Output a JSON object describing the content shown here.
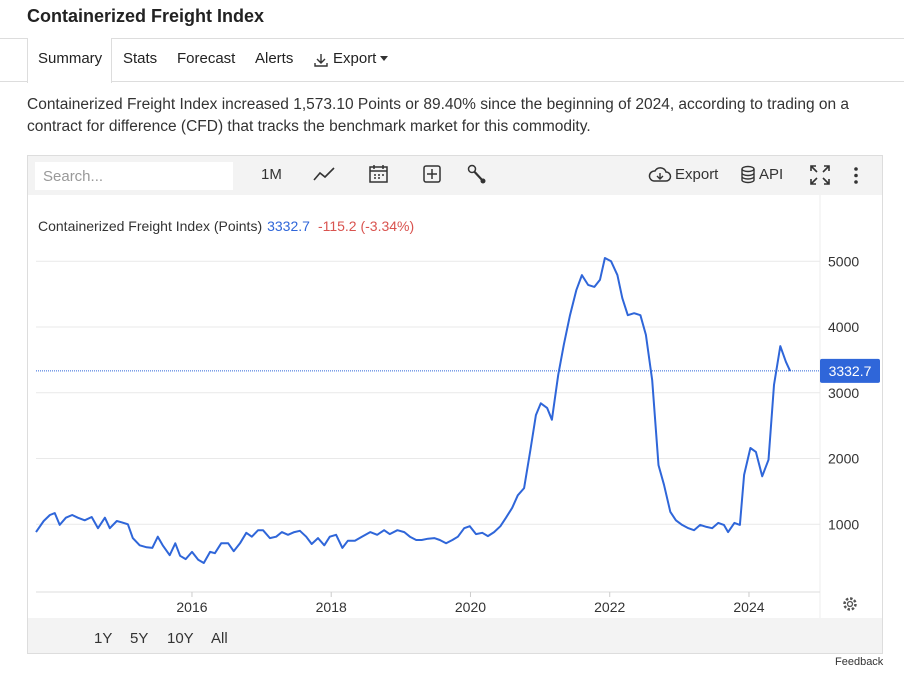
{
  "header": {
    "title": "Containerized Freight Index"
  },
  "tabs": [
    "Summary",
    "Stats",
    "Forecast",
    "Alerts",
    "Export"
  ],
  "description": "Containerized Freight Index increased 1,573.10 Points or 89.40% since the beginning of 2024, according to trading on a contract for difference (CFD) that tracks the benchmark market for this commodity.",
  "toolbar": {
    "search_placeholder": "Search...",
    "interval": "1M",
    "export": "Export",
    "api": "API"
  },
  "ranges": [
    "1Y",
    "5Y",
    "10Y",
    "All"
  ],
  "feedback": "Feedback",
  "chart_data": {
    "type": "line",
    "series": [
      {
        "name": "Containerized Freight Index (Points)",
        "color": "#2f66d9",
        "values": [
          880,
          1050,
          1140,
          1170,
          990,
          1100,
          1140,
          1100,
          1060,
          1110,
          940,
          1100,
          940,
          1050,
          1030,
          1000,
          790,
          680,
          650,
          640,
          810,
          680,
          530,
          710,
          520,
          470,
          580,
          460,
          410,
          580,
          560,
          710,
          710,
          590,
          710,
          870,
          810,
          910,
          910,
          790,
          810,
          880,
          840,
          880,
          900,
          810,
          700,
          790,
          680,
          810,
          840,
          640,
          750,
          750,
          810,
          880,
          840,
          910,
          850,
          910,
          880,
          810,
          760,
          760,
          780,
          790,
          760,
          710,
          760,
          810,
          940,
          970,
          850,
          870,
          820,
          880,
          970,
          1100,
          1250,
          1440,
          1550,
          2130,
          2660,
          2840,
          2770,
          2590,
          3270,
          3730,
          4180,
          4560,
          4790,
          4640,
          4610,
          4720,
          5050,
          5000,
          4790,
          4440,
          4180,
          4210,
          4180,
          3880,
          3190,
          1900,
          1600,
          1190,
          1060,
          990,
          940,
          910,
          990,
          960,
          940,
          1020,
          990,
          880,
          1020,
          990,
          1750,
          2160,
          2100,
          1730,
          1980,
          3120,
          3710,
          3470,
          3332.7
        ]
      }
    ],
    "x": [
      2013.76,
      2013.87,
      2013.96,
      2014.03,
      2014.1,
      2014.19,
      2014.28,
      2014.36,
      2014.46,
      2014.56,
      2014.65,
      2014.75,
      2014.82,
      2014.92,
      2014.99,
      2015.08,
      2015.15,
      2015.25,
      2015.35,
      2015.43,
      2015.51,
      2015.58,
      2015.68,
      2015.76,
      2015.83,
      2015.91,
      2016.0,
      2016.09,
      2016.17,
      2016.26,
      2016.33,
      2016.42,
      2016.52,
      2016.6,
      2016.69,
      2016.78,
      2016.86,
      2016.95,
      2017.02,
      2017.12,
      2017.21,
      2017.29,
      2017.38,
      2017.47,
      2017.55,
      2017.64,
      2017.72,
      2017.81,
      2017.9,
      2017.98,
      2018.07,
      2018.16,
      2018.24,
      2018.34,
      2018.44,
      2018.56,
      2018.66,
      2018.76,
      2018.84,
      2018.95,
      2019.05,
      2019.13,
      2019.22,
      2019.3,
      2019.39,
      2019.48,
      2019.56,
      2019.65,
      2019.74,
      2019.82,
      2019.91,
      2019.99,
      2020.08,
      2020.17,
      2020.25,
      2020.34,
      2020.43,
      2020.51,
      2020.6,
      2020.68,
      2020.77,
      2020.86,
      2020.94,
      2021.01,
      2021.1,
      2021.17,
      2021.26,
      2021.34,
      2021.43,
      2021.52,
      2021.6,
      2021.69,
      2021.78,
      2021.86,
      2021.93,
      2022.02,
      2022.11,
      2022.18,
      2022.26,
      2022.35,
      2022.44,
      2022.52,
      2022.61,
      2022.7,
      2022.78,
      2022.87,
      2022.95,
      2023.04,
      2023.13,
      2023.21,
      2023.3,
      2023.39,
      2023.47,
      2023.56,
      2023.64,
      2023.7,
      2023.79,
      2023.87,
      2023.93,
      2024.02,
      2024.1,
      2024.19,
      2024.28,
      2024.36,
      2024.45,
      2024.53,
      2024.59
    ],
    "xlim": [
      2013.76,
      2025.02
    ],
    "xticks": [
      2016,
      2018,
      2020,
      2022,
      2024
    ],
    "ylim": [
      0,
      6000
    ],
    "yticks": [
      1000,
      2000,
      3000,
      4000,
      5000
    ],
    "grid": true,
    "last_value": 3332.7,
    "change": "-115.2 (-3.34%)"
  }
}
